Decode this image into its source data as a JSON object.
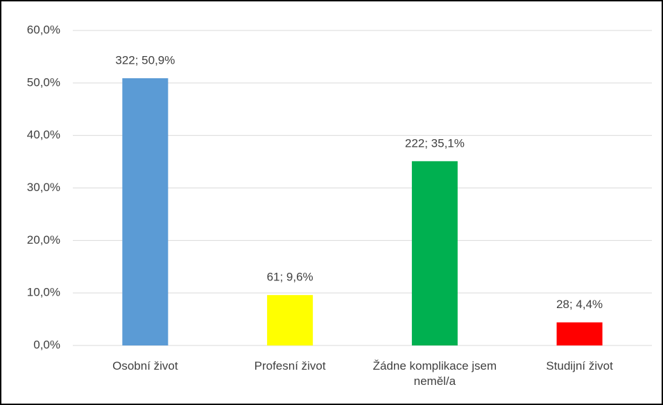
{
  "chart_data": {
    "type": "bar",
    "categories": [
      "Osobní život",
      "Profesní život",
      "Žádne komplikace jsem neměl/a",
      "Studijní život"
    ],
    "values": [
      50.9,
      9.6,
      35.1,
      4.4
    ],
    "value_labels": [
      "322; 50,9%",
      "61; 9,6%",
      "222; 35,1%",
      "28; 4,4%"
    ],
    "colors": [
      "#5b9bd5",
      "#ffff00",
      "#00b050",
      "#ff0000"
    ],
    "ylim": [
      0,
      60
    ],
    "yticks": [
      {
        "value": 0,
        "label": "0,0%"
      },
      {
        "value": 10,
        "label": "10,0%"
      },
      {
        "value": 20,
        "label": "20,0%"
      },
      {
        "value": 30,
        "label": "30,0%"
      },
      {
        "value": 40,
        "label": "40,0%"
      },
      {
        "value": 50,
        "label": "50,0%"
      },
      {
        "value": 60,
        "label": "60,0%"
      }
    ],
    "grid": true
  }
}
